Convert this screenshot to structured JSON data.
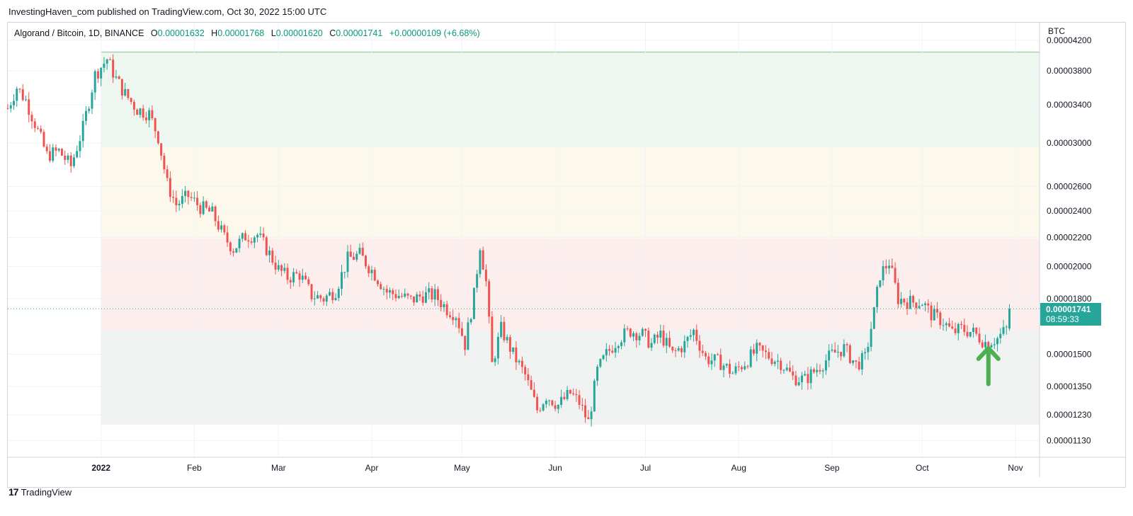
{
  "header": {
    "published_line": "InvestingHaven_com published on TradingView.com, Oct 30, 2022 15:00 UTC"
  },
  "legend": {
    "symbol": "Algorand / Bitcoin, 1D, BINANCE",
    "open_label": "O",
    "open": "0.00001632",
    "high_label": "H",
    "high": "0.00001768",
    "low_label": "L",
    "low": "0.00001620",
    "close_label": "C",
    "close": "0.00001741",
    "change": "+0.00000109 (+6.68%)"
  },
  "price_tag": {
    "price": "0.00001741",
    "countdown": "08:59:33"
  },
  "footer": {
    "logo_mark": "17",
    "brand": "TradingView"
  },
  "colors": {
    "up": "#26a69a",
    "down": "#ef5350",
    "zone_green": "#eef7ef",
    "zone_yellow": "#fdf8ec",
    "zone_red": "#fdeeee",
    "zone_gray": "#f0f2f1",
    "arrow": "#4caf50"
  },
  "annotation": {
    "arrow_icon": "up-arrow-icon",
    "arrow_date": "2022-10-23",
    "arrow_price_top": 1.53e-05,
    "arrow_price_bottom": 1.36e-05
  },
  "chart_data": {
    "type": "candlestick",
    "title": "Algorand / Bitcoin, 1D, BINANCE",
    "y_unit": "BTC",
    "y_scale": "log",
    "y_ticks": [
      "0.00004200",
      "0.00003800",
      "0.00003400",
      "0.00003000",
      "0.00002600",
      "0.00002400",
      "0.00002200",
      "0.00002000",
      "0.00001800",
      "0.00001500",
      "0.00001350",
      "0.00001230",
      "0.00001130"
    ],
    "x_ticks": [
      "2022",
      "Feb",
      "Mar",
      "Apr",
      "May",
      "Jun",
      "Jul",
      "Aug",
      "Sep",
      "Oct",
      "Nov"
    ],
    "x_tick_dates": [
      "2022-01-01",
      "2022-02-01",
      "2022-03-01",
      "2022-04-01",
      "2022-05-01",
      "2022-06-01",
      "2022-07-01",
      "2022-08-01",
      "2022-09-01",
      "2022-10-01",
      "2022-11-01"
    ],
    "x_range": [
      "2021-12-01",
      "2022-11-09"
    ],
    "ylim": [
      1.07e-05,
      4.45e-05
    ],
    "grid": true,
    "last_price": 1.741e-05,
    "zones": [
      {
        "color": "green",
        "from": "2022-01-01",
        "to": "2022-11-09",
        "low": 2.96e-05,
        "high": 4.04e-05
      },
      {
        "color": "yellow",
        "from": "2022-01-01",
        "to": "2022-11-09",
        "low": 2.19e-05,
        "high": 2.96e-05
      },
      {
        "color": "red",
        "from": "2022-01-01",
        "to": "2022-11-09",
        "low": 1.62e-05,
        "high": 2.19e-05
      },
      {
        "color": "gray",
        "from": "2022-01-01",
        "to": "2022-11-09",
        "low": 1.19e-05,
        "high": 1.62e-05
      }
    ],
    "close_anchors": [
      [
        "2021-12-01",
        3.36e-05
      ],
      [
        "2021-12-04",
        3.6e-05
      ],
      [
        "2021-12-07",
        3.45e-05
      ],
      [
        "2021-12-10",
        3.2e-05
      ],
      [
        "2021-12-14",
        2.88e-05
      ],
      [
        "2021-12-18",
        2.92e-05
      ],
      [
        "2021-12-22",
        2.78e-05
      ],
      [
        "2021-12-26",
        3.15e-05
      ],
      [
        "2021-12-30",
        3.75e-05
      ],
      [
        "2022-01-03",
        3.95e-05
      ],
      [
        "2022-01-06",
        3.7e-05
      ],
      [
        "2022-01-09",
        3.52e-05
      ],
      [
        "2022-01-13",
        3.35e-05
      ],
      [
        "2022-01-17",
        3.3e-05
      ],
      [
        "2022-01-20",
        3.06e-05
      ],
      [
        "2022-01-23",
        2.62e-05
      ],
      [
        "2022-01-26",
        2.45e-05
      ],
      [
        "2022-01-30",
        2.52e-05
      ],
      [
        "2022-02-03",
        2.43e-05
      ],
      [
        "2022-02-07",
        2.38e-05
      ],
      [
        "2022-02-11",
        2.2e-05
      ],
      [
        "2022-02-14",
        2.12e-05
      ],
      [
        "2022-02-18",
        2.21e-05
      ],
      [
        "2022-02-22",
        2.22e-05
      ],
      [
        "2022-02-25",
        2.12e-05
      ],
      [
        "2022-03-01",
        1.98e-05
      ],
      [
        "2022-03-04",
        1.93e-05
      ],
      [
        "2022-03-08",
        1.95e-05
      ],
      [
        "2022-03-12",
        1.82e-05
      ],
      [
        "2022-03-16",
        1.8e-05
      ],
      [
        "2022-03-20",
        1.85e-05
      ],
      [
        "2022-03-24",
        2.05e-05
      ],
      [
        "2022-03-28",
        2.08e-05
      ],
      [
        "2022-04-02",
        1.95e-05
      ],
      [
        "2022-04-06",
        1.84e-05
      ],
      [
        "2022-04-10",
        1.82e-05
      ],
      [
        "2022-04-14",
        1.79e-05
      ],
      [
        "2022-04-18",
        1.82e-05
      ],
      [
        "2022-04-22",
        1.82e-05
      ],
      [
        "2022-04-26",
        1.74e-05
      ],
      [
        "2022-04-29",
        1.71e-05
      ],
      [
        "2022-05-02",
        1.55e-05
      ],
      [
        "2022-05-05",
        1.82e-05
      ],
      [
        "2022-05-07",
        2.15e-05
      ],
      [
        "2022-05-09",
        1.9e-05
      ],
      [
        "2022-05-11",
        1.45e-05
      ],
      [
        "2022-05-14",
        1.63e-05
      ],
      [
        "2022-05-18",
        1.5e-05
      ],
      [
        "2022-05-22",
        1.4e-05
      ],
      [
        "2022-05-26",
        1.25e-05
      ],
      [
        "2022-05-29",
        1.31e-05
      ],
      [
        "2022-06-02",
        1.27e-05
      ],
      [
        "2022-06-06",
        1.32e-05
      ],
      [
        "2022-06-09",
        1.28e-05
      ],
      [
        "2022-06-12",
        1.2e-05
      ],
      [
        "2022-06-15",
        1.42e-05
      ],
      [
        "2022-06-18",
        1.5e-05
      ],
      [
        "2022-06-22",
        1.58e-05
      ],
      [
        "2022-06-26",
        1.62e-05
      ],
      [
        "2022-06-30",
        1.6e-05
      ],
      [
        "2022-07-03",
        1.55e-05
      ],
      [
        "2022-07-06",
        1.6e-05
      ],
      [
        "2022-07-10",
        1.5e-05
      ],
      [
        "2022-07-14",
        1.55e-05
      ],
      [
        "2022-07-17",
        1.62e-05
      ],
      [
        "2022-07-21",
        1.48e-05
      ],
      [
        "2022-07-26",
        1.46e-05
      ],
      [
        "2022-07-30",
        1.41e-05
      ],
      [
        "2022-08-03",
        1.46e-05
      ],
      [
        "2022-08-07",
        1.52e-05
      ],
      [
        "2022-08-11",
        1.49e-05
      ],
      [
        "2022-08-15",
        1.46e-05
      ],
      [
        "2022-08-19",
        1.39e-05
      ],
      [
        "2022-08-23",
        1.38e-05
      ],
      [
        "2022-08-27",
        1.43e-05
      ],
      [
        "2022-09-01",
        1.5e-05
      ],
      [
        "2022-09-05",
        1.53e-05
      ],
      [
        "2022-09-09",
        1.45e-05
      ],
      [
        "2022-09-12",
        1.48e-05
      ],
      [
        "2022-09-15",
        1.72e-05
      ],
      [
        "2022-09-17",
        1.95e-05
      ],
      [
        "2022-09-20",
        2.03e-05
      ],
      [
        "2022-09-23",
        1.8e-05
      ],
      [
        "2022-09-27",
        1.78e-05
      ],
      [
        "2022-10-01",
        1.78e-05
      ],
      [
        "2022-10-04",
        1.71e-05
      ],
      [
        "2022-10-08",
        1.67e-05
      ],
      [
        "2022-10-11",
        1.61e-05
      ],
      [
        "2022-10-14",
        1.63e-05
      ],
      [
        "2022-10-18",
        1.61e-05
      ],
      [
        "2022-10-22",
        1.56e-05
      ],
      [
        "2022-10-26",
        1.58e-05
      ],
      [
        "2022-10-29",
        1.63e-05
      ],
      [
        "2022-10-30",
        1.74e-05
      ]
    ]
  }
}
